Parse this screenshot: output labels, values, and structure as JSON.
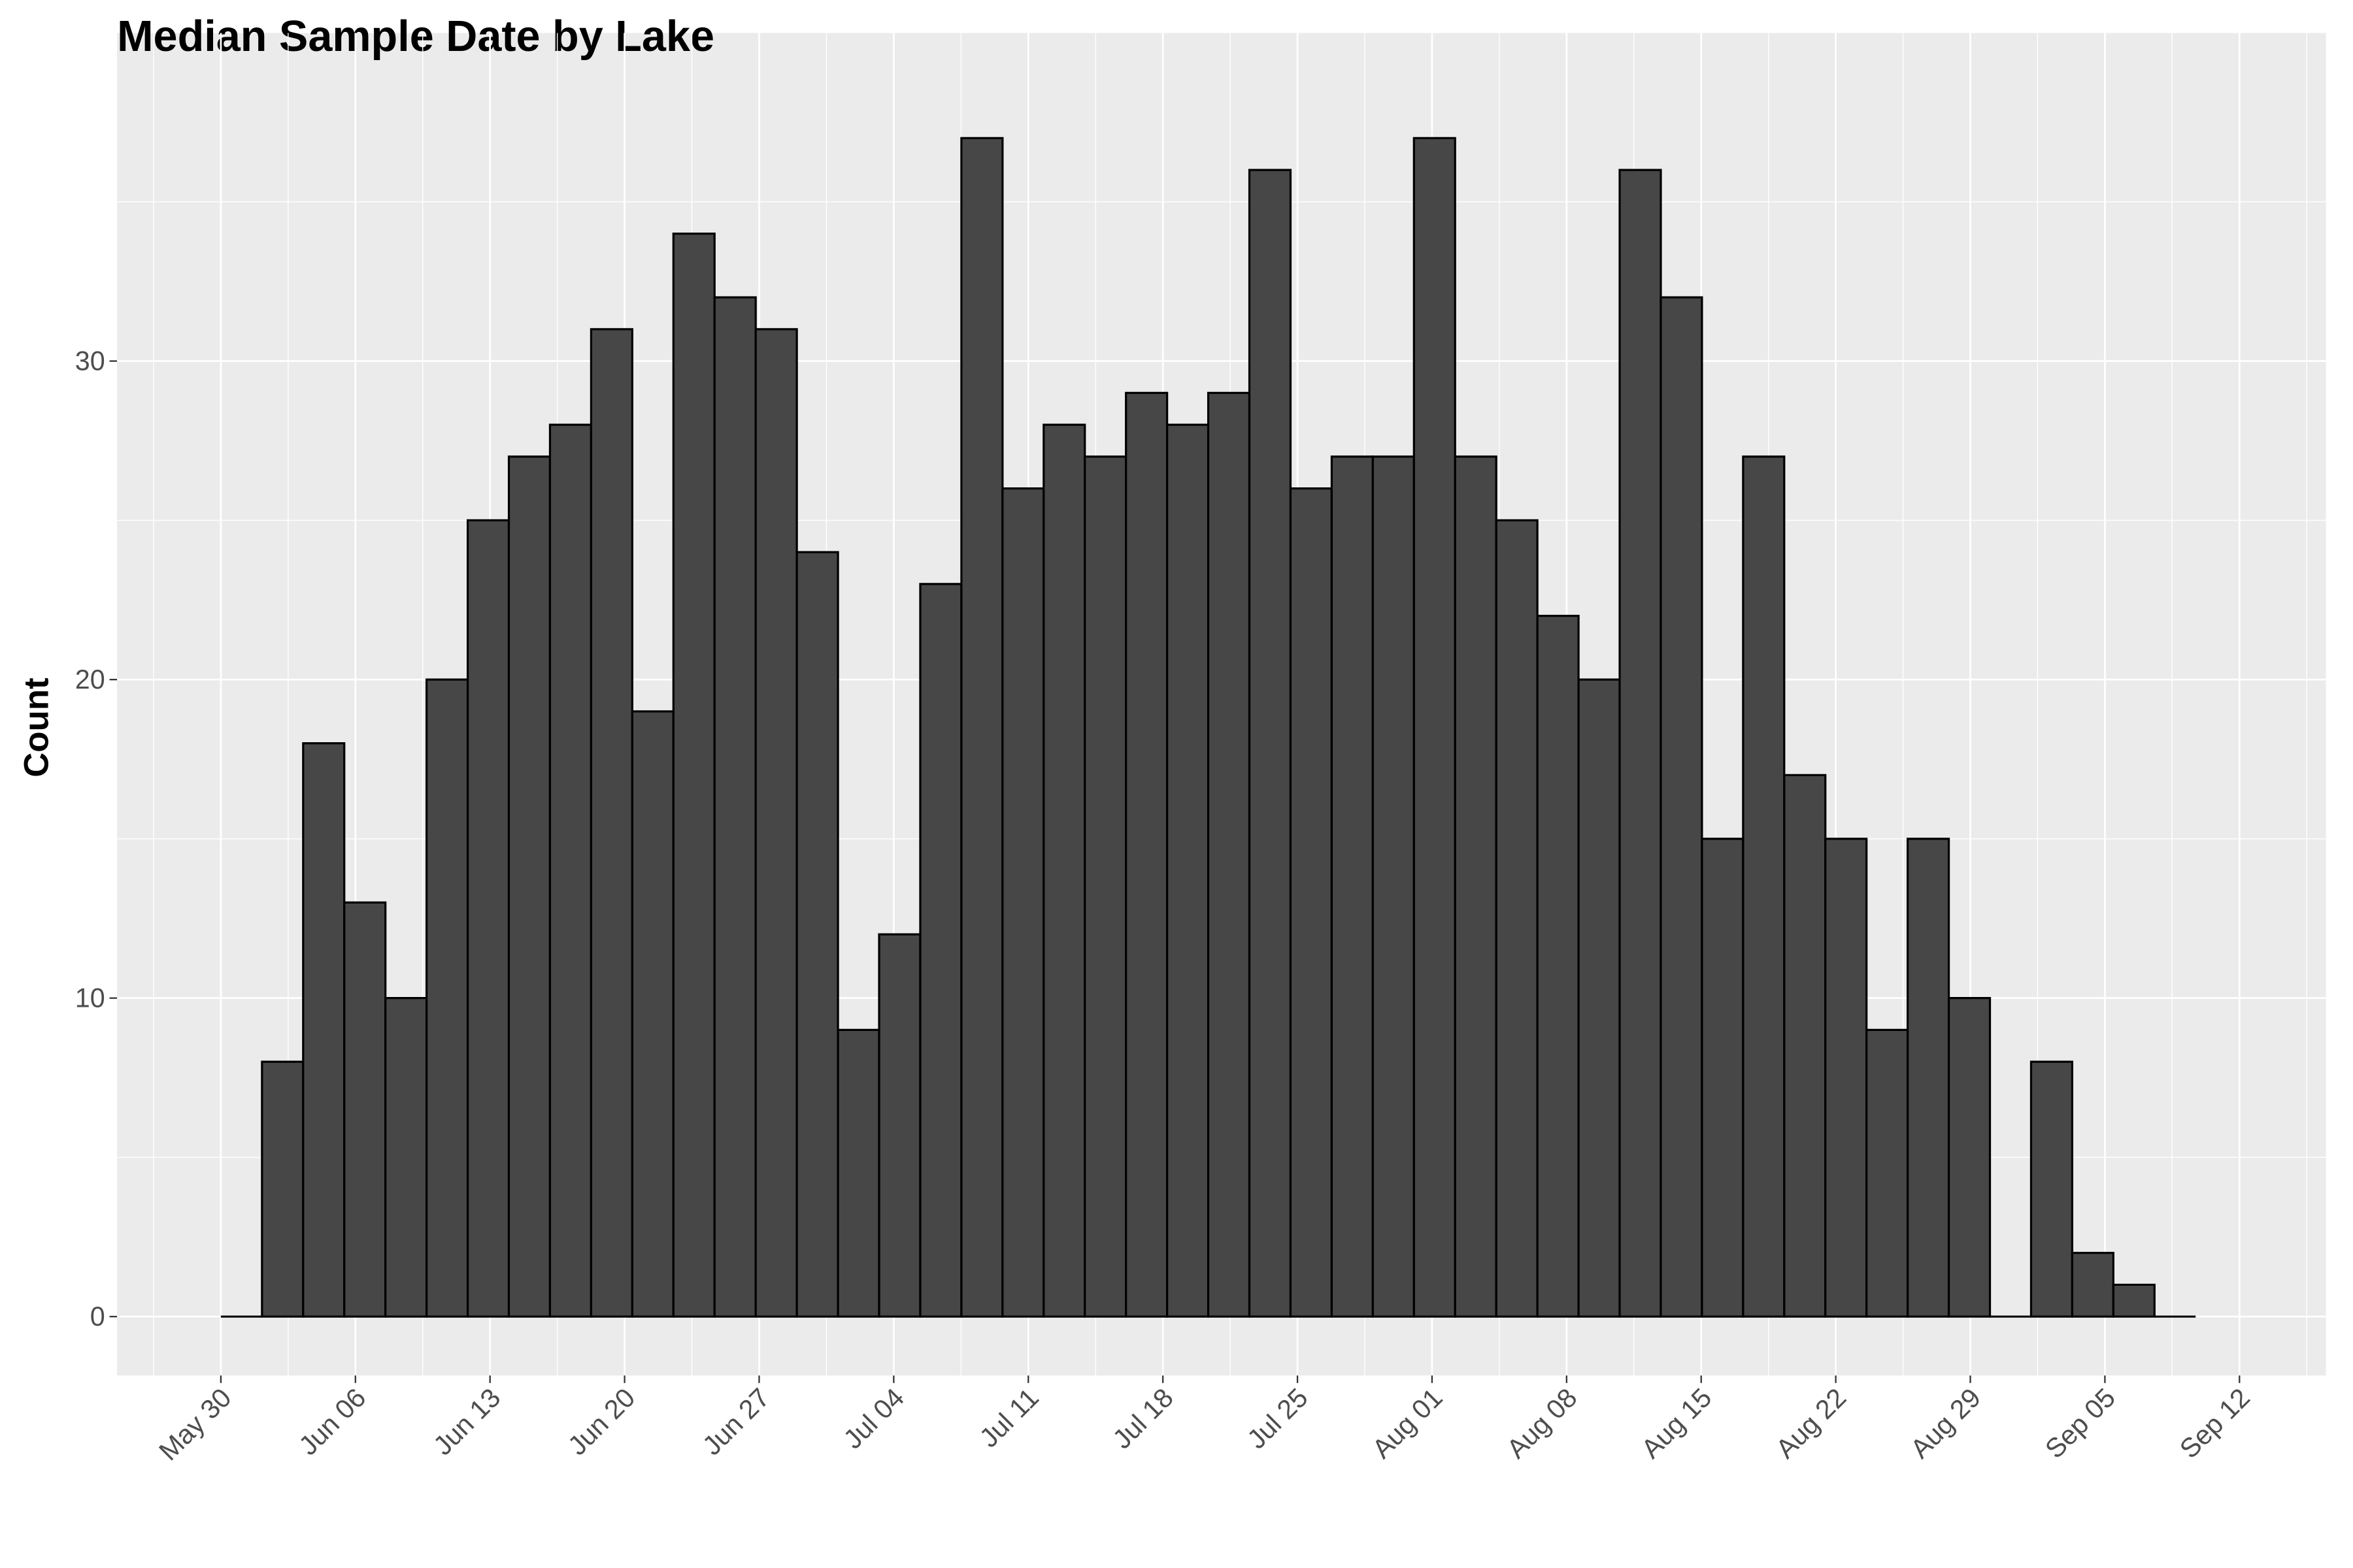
{
  "chart_data": {
    "type": "histogram",
    "title": "Median Sample Date by Lake",
    "y_label": "Count",
    "bins": [
      0,
      2.14,
      4.28,
      6.42,
      8.56,
      10.7,
      12.84,
      14.98,
      17.12,
      19.26,
      21.4,
      23.54,
      25.68,
      27.82,
      29.96,
      32.1,
      34.24,
      36.38,
      38.52,
      40.66,
      42.8,
      44.94,
      47.08,
      49.22,
      51.36,
      53.5,
      55.64,
      57.78,
      59.92,
      62.06,
      64.2,
      66.34,
      68.48,
      70.62,
      72.76,
      74.9,
      77.04,
      79.18,
      81.32,
      83.46,
      85.6,
      87.74,
      89.88,
      92.02,
      94.16,
      96.3,
      98.44,
      100.58,
      102.72
    ],
    "values": [
      0,
      8,
      18,
      13,
      10,
      20,
      25,
      27,
      28,
      31,
      19,
      34,
      32,
      31,
      24,
      9,
      12,
      23,
      37,
      26,
      28,
      27,
      29,
      28,
      29,
      36,
      26,
      27,
      27,
      37,
      27,
      25,
      22,
      20,
      36,
      32,
      15,
      27,
      17,
      15,
      9,
      15,
      10,
      0,
      8,
      2,
      1,
      0
    ],
    "color": "#474747",
    "xlim": [
      -5.4,
      109.5
    ],
    "xticks": [
      {
        "value": 0,
        "label": "May 30"
      },
      {
        "value": 7,
        "label": "Jun 06"
      },
      {
        "value": 14,
        "label": "Jun 13"
      },
      {
        "value": 21,
        "label": "Jun 20"
      },
      {
        "value": 28,
        "label": "Jun 27"
      },
      {
        "value": 35,
        "label": "Jul 04"
      },
      {
        "value": 42,
        "label": "Jul 11"
      },
      {
        "value": 49,
        "label": "Jul 18"
      },
      {
        "value": 56,
        "label": "Jul 25"
      },
      {
        "value": 63,
        "label": "Aug 01"
      },
      {
        "value": 70,
        "label": "Aug 08"
      },
      {
        "value": 77,
        "label": "Aug 15"
      },
      {
        "value": 84,
        "label": "Aug 22"
      },
      {
        "value": 91,
        "label": "Aug 29"
      },
      {
        "value": 98,
        "label": "Sep 05"
      },
      {
        "value": 105,
        "label": "Sep 12"
      }
    ],
    "ylim": [
      -1.85,
      40.3
    ],
    "yticks": [
      0,
      10,
      20,
      30
    ],
    "grid": true
  }
}
